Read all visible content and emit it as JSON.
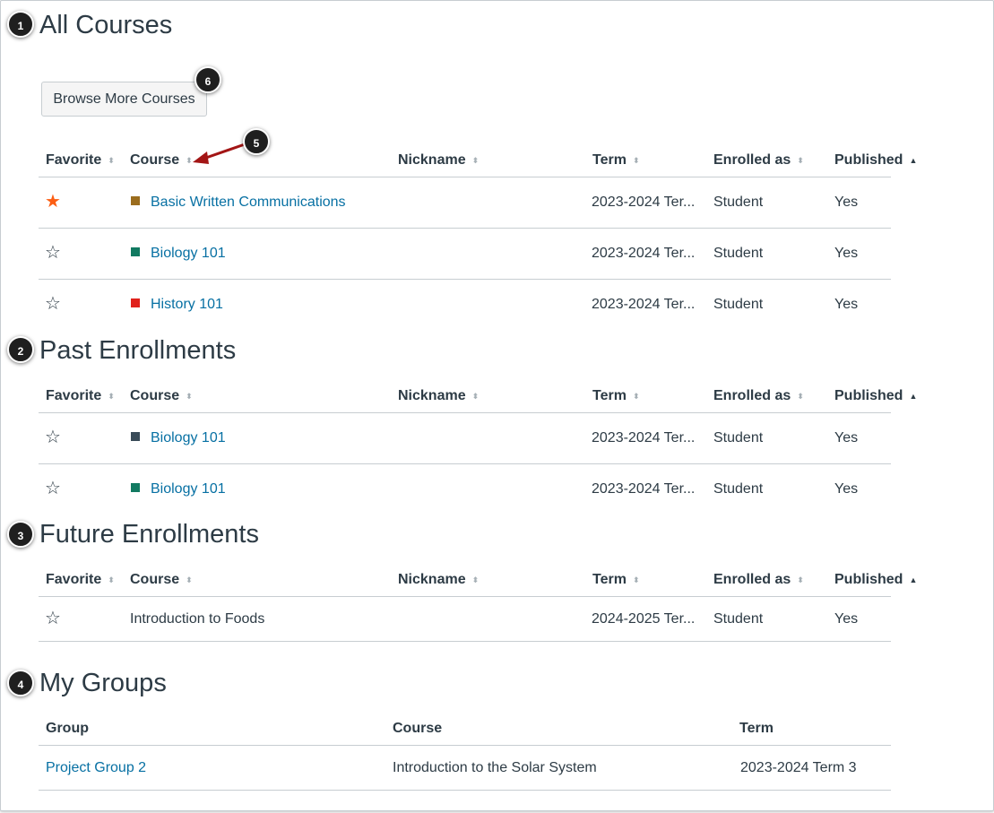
{
  "callouts": [
    "1",
    "2",
    "3",
    "4",
    "5",
    "6"
  ],
  "browse_button": "Browse More Courses",
  "course_columns": {
    "favorite": "Favorite",
    "course": "Course",
    "nickname": "Nickname",
    "term": "Term",
    "enrolled_as": "Enrolled as",
    "published": "Published"
  },
  "sections": {
    "all_courses": {
      "title": "All Courses",
      "rows": [
        {
          "favorite": true,
          "course": "Basic Written Communications",
          "color": "#9b6d1e",
          "nickname": "",
          "term": "2023-2024 Ter...",
          "enrolled_as": "Student",
          "published": "Yes"
        },
        {
          "favorite": false,
          "course": "Biology 101",
          "color": "#127a61",
          "nickname": "",
          "term": "2023-2024 Ter...",
          "enrolled_as": "Student",
          "published": "Yes"
        },
        {
          "favorite": false,
          "course": "History 101",
          "color": "#e0211c",
          "nickname": "",
          "term": "2023-2024 Ter...",
          "enrolled_as": "Student",
          "published": "Yes"
        }
      ]
    },
    "past": {
      "title": "Past Enrollments",
      "rows": [
        {
          "favorite": false,
          "course": "Biology 101",
          "color": "#394b58",
          "nickname": "",
          "term": "2023-2024 Ter...",
          "enrolled_as": "Student",
          "published": "Yes"
        },
        {
          "favorite": false,
          "course": "Biology 101",
          "color": "#127a61",
          "nickname": "",
          "term": "2023-2024 Ter...",
          "enrolled_as": "Student",
          "published": "Yes"
        }
      ]
    },
    "future": {
      "title": "Future Enrollments",
      "rows": [
        {
          "favorite": false,
          "course": "Introduction to Foods",
          "nickname": "",
          "term": "2024-2025 Ter...",
          "enrolled_as": "Student",
          "published": "Yes"
        }
      ]
    },
    "groups": {
      "title": "My Groups",
      "columns": {
        "group": "Group",
        "course": "Course",
        "term": "Term"
      },
      "rows": [
        {
          "group": "Project Group 2",
          "course": "Introduction to the Solar System",
          "term": "2023-2024 Term 3"
        }
      ]
    }
  },
  "icons": {
    "star_filled": "★",
    "star_empty": "☆",
    "sort_both": "⬍",
    "sort_up": "▲"
  },
  "colors": {
    "link": "#0770a3",
    "favorite_star": "#fc5e13",
    "text": "#2d3b45",
    "callout": "#1f1f1f",
    "arrow": "#a31515"
  }
}
